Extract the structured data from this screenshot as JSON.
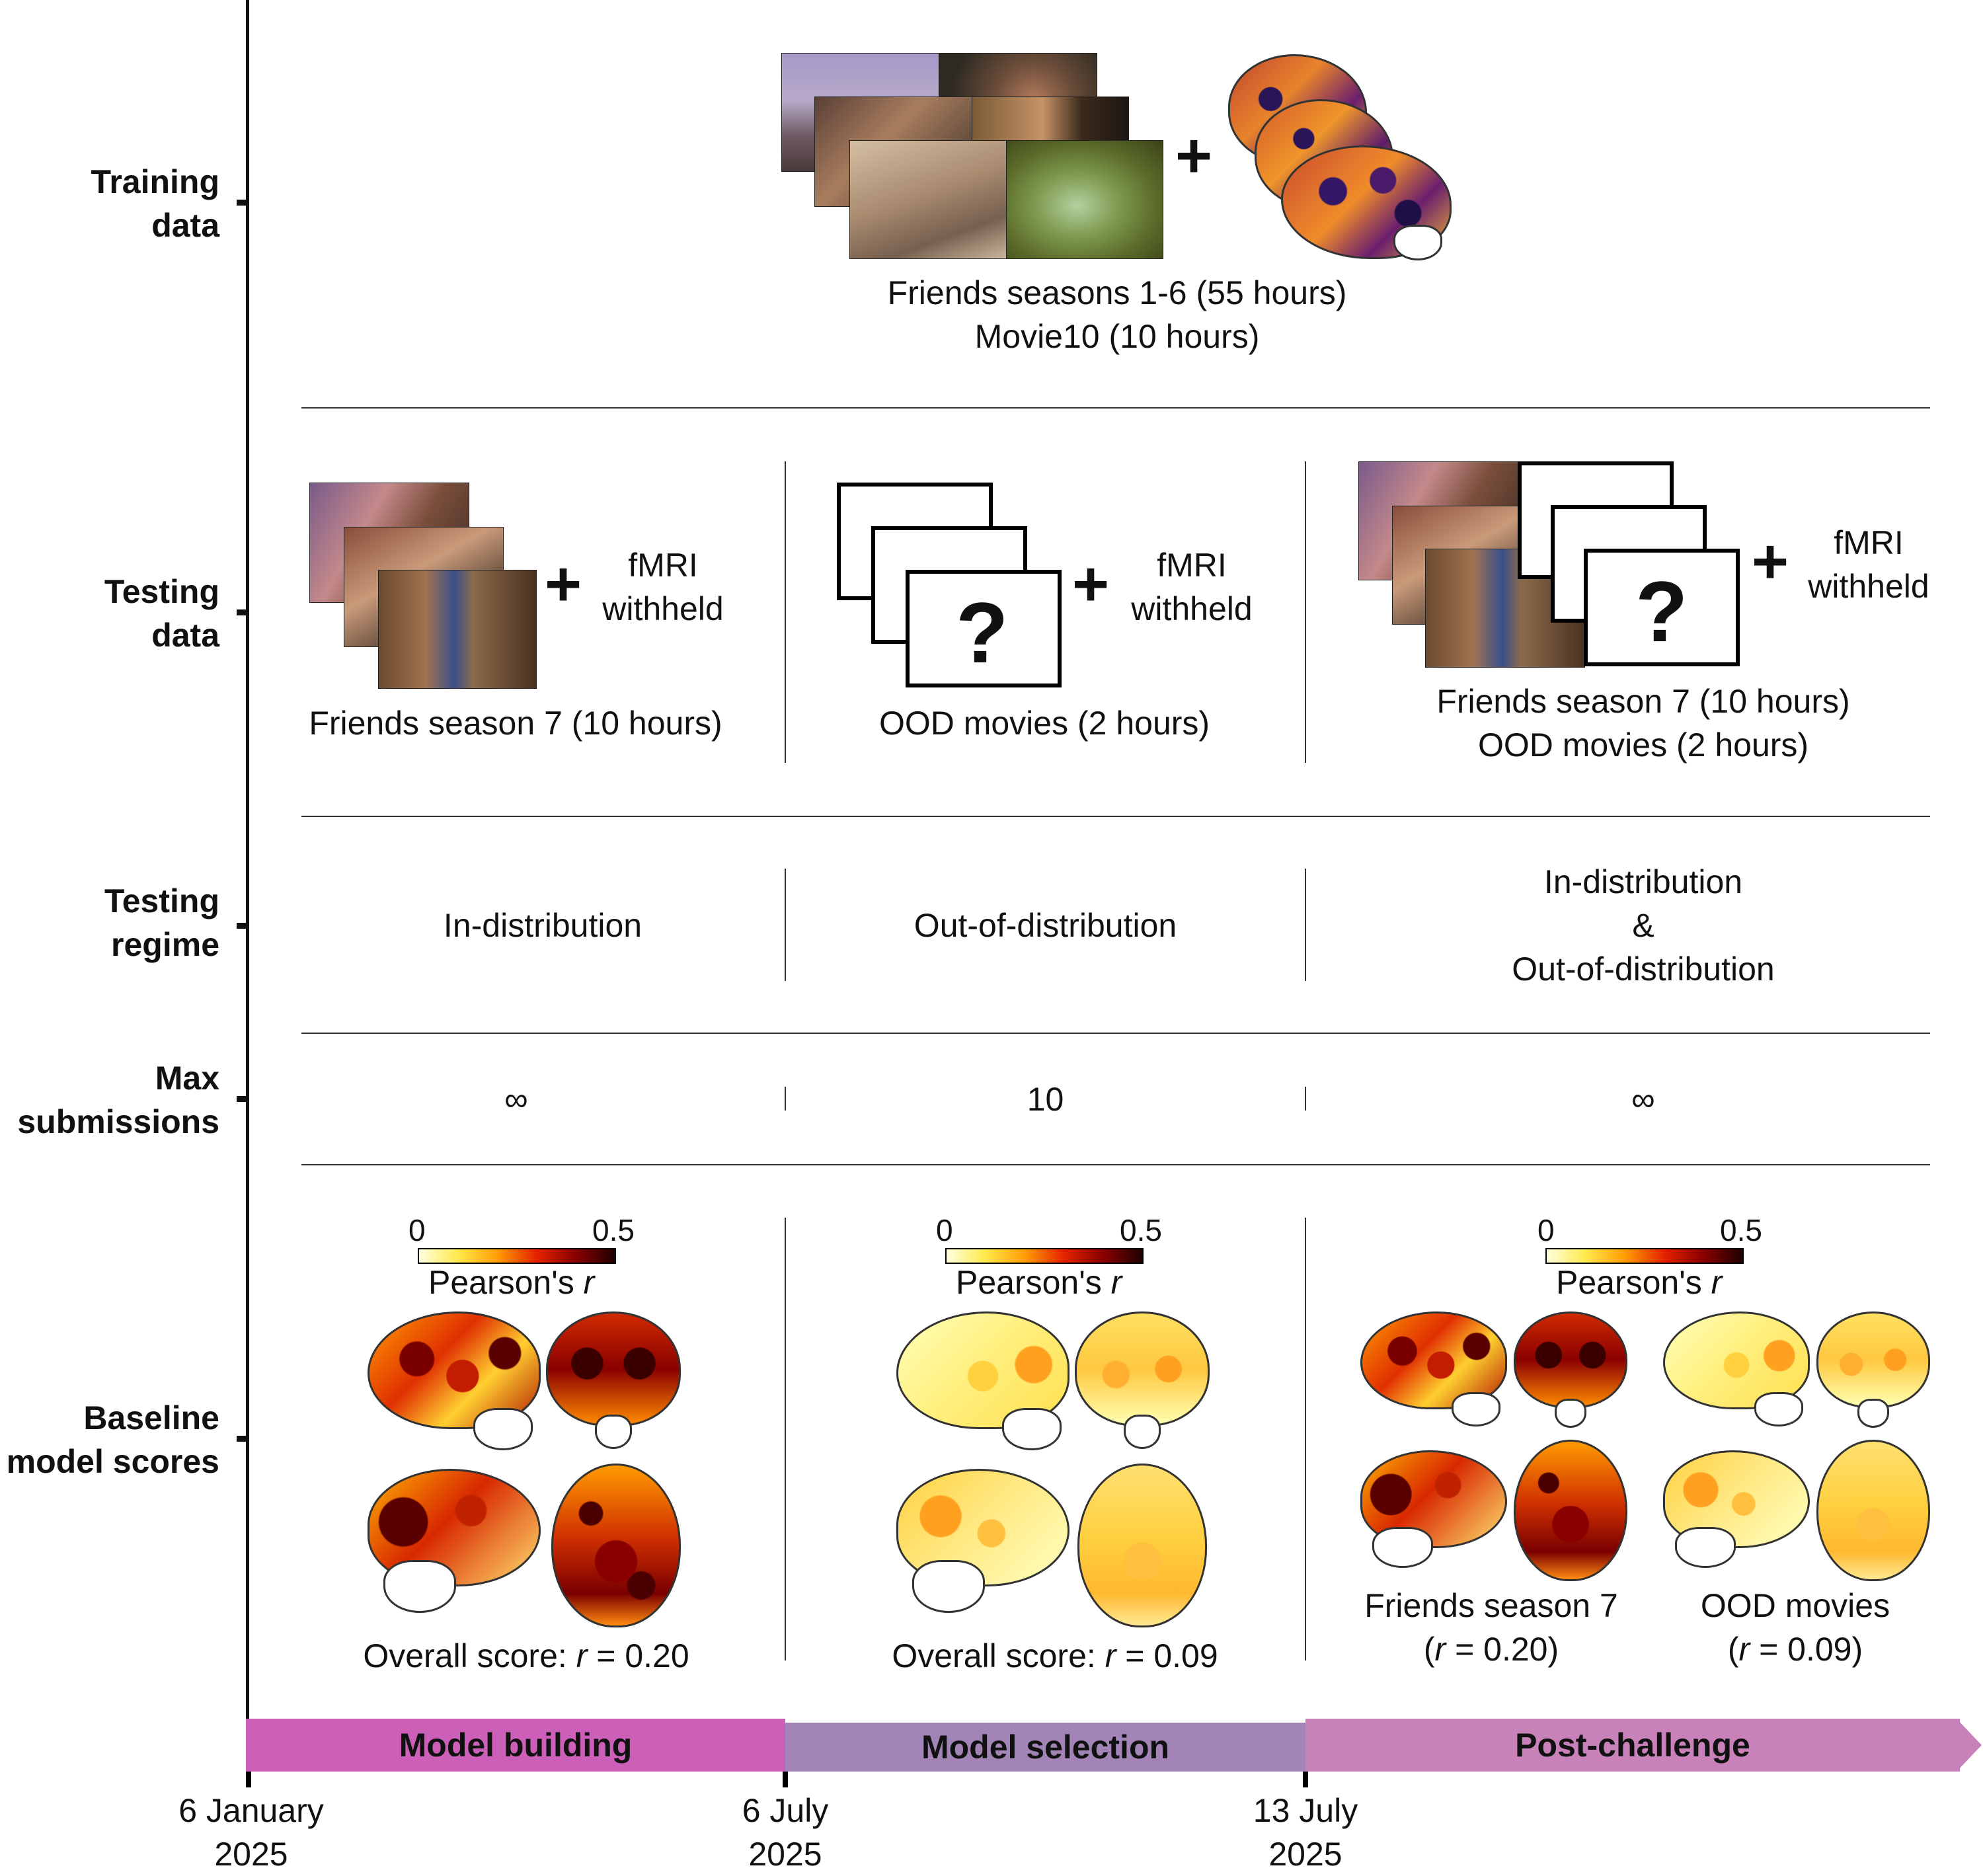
{
  "row_labels": {
    "training": "Training\ndata",
    "testing_data": "Testing\ndata",
    "testing_regime": "Testing\nregime",
    "max_submissions": "Max\nsubmissions",
    "baseline": "Baseline\nmodel scores"
  },
  "training": {
    "caption": "Friends seasons 1-6 (55 hours)\nMovie10 (10 hours)",
    "plus": "+"
  },
  "testing_data": {
    "col1": {
      "caption": "Friends season 7 (10 hours)",
      "fmri": "fMRI\nwithheld",
      "plus": "+"
    },
    "col2": {
      "caption": "OOD movies (2 hours)",
      "fmri": "fMRI\nwithheld",
      "plus": "+",
      "question_mark": "?"
    },
    "col3": {
      "caption": "Friends season 7 (10 hours)\nOOD movies (2 hours)",
      "fmri": "fMRI\nwithheld",
      "plus": "+",
      "question_mark": "?"
    }
  },
  "testing_regime": {
    "col1": "In-distribution",
    "col2": "Out-of-distribution",
    "col3": "In-distribution\n&\nOut-of-distribution"
  },
  "max_submissions": {
    "col1": "∞",
    "col2": "10",
    "col3": "∞"
  },
  "colorbar": {
    "min": "0",
    "max": "0.5",
    "label_prefix": "Pearson's ",
    "label_var": "r"
  },
  "baseline": {
    "col1": {
      "prefix": "Overall score: ",
      "var": "r",
      "value": " = 0.20"
    },
    "col2": {
      "prefix": "Overall score: ",
      "var": "r",
      "value": " = 0.09"
    },
    "col3a": {
      "name": "Friends season 7",
      "open": "(",
      "var": "r",
      "value": " = 0.20)"
    },
    "col3b": {
      "name": "OOD movies",
      "open": "(",
      "var": "r",
      "value": " = 0.09)"
    }
  },
  "timeline": {
    "phases": [
      "Model building",
      "Model selection",
      "Post-challenge"
    ],
    "phase_colors": [
      "#cc60b9",
      "#a284b6",
      "#c882b9"
    ],
    "dates": [
      "6 January\n2025",
      "6 July\n2025",
      "13 July\n2025"
    ]
  }
}
